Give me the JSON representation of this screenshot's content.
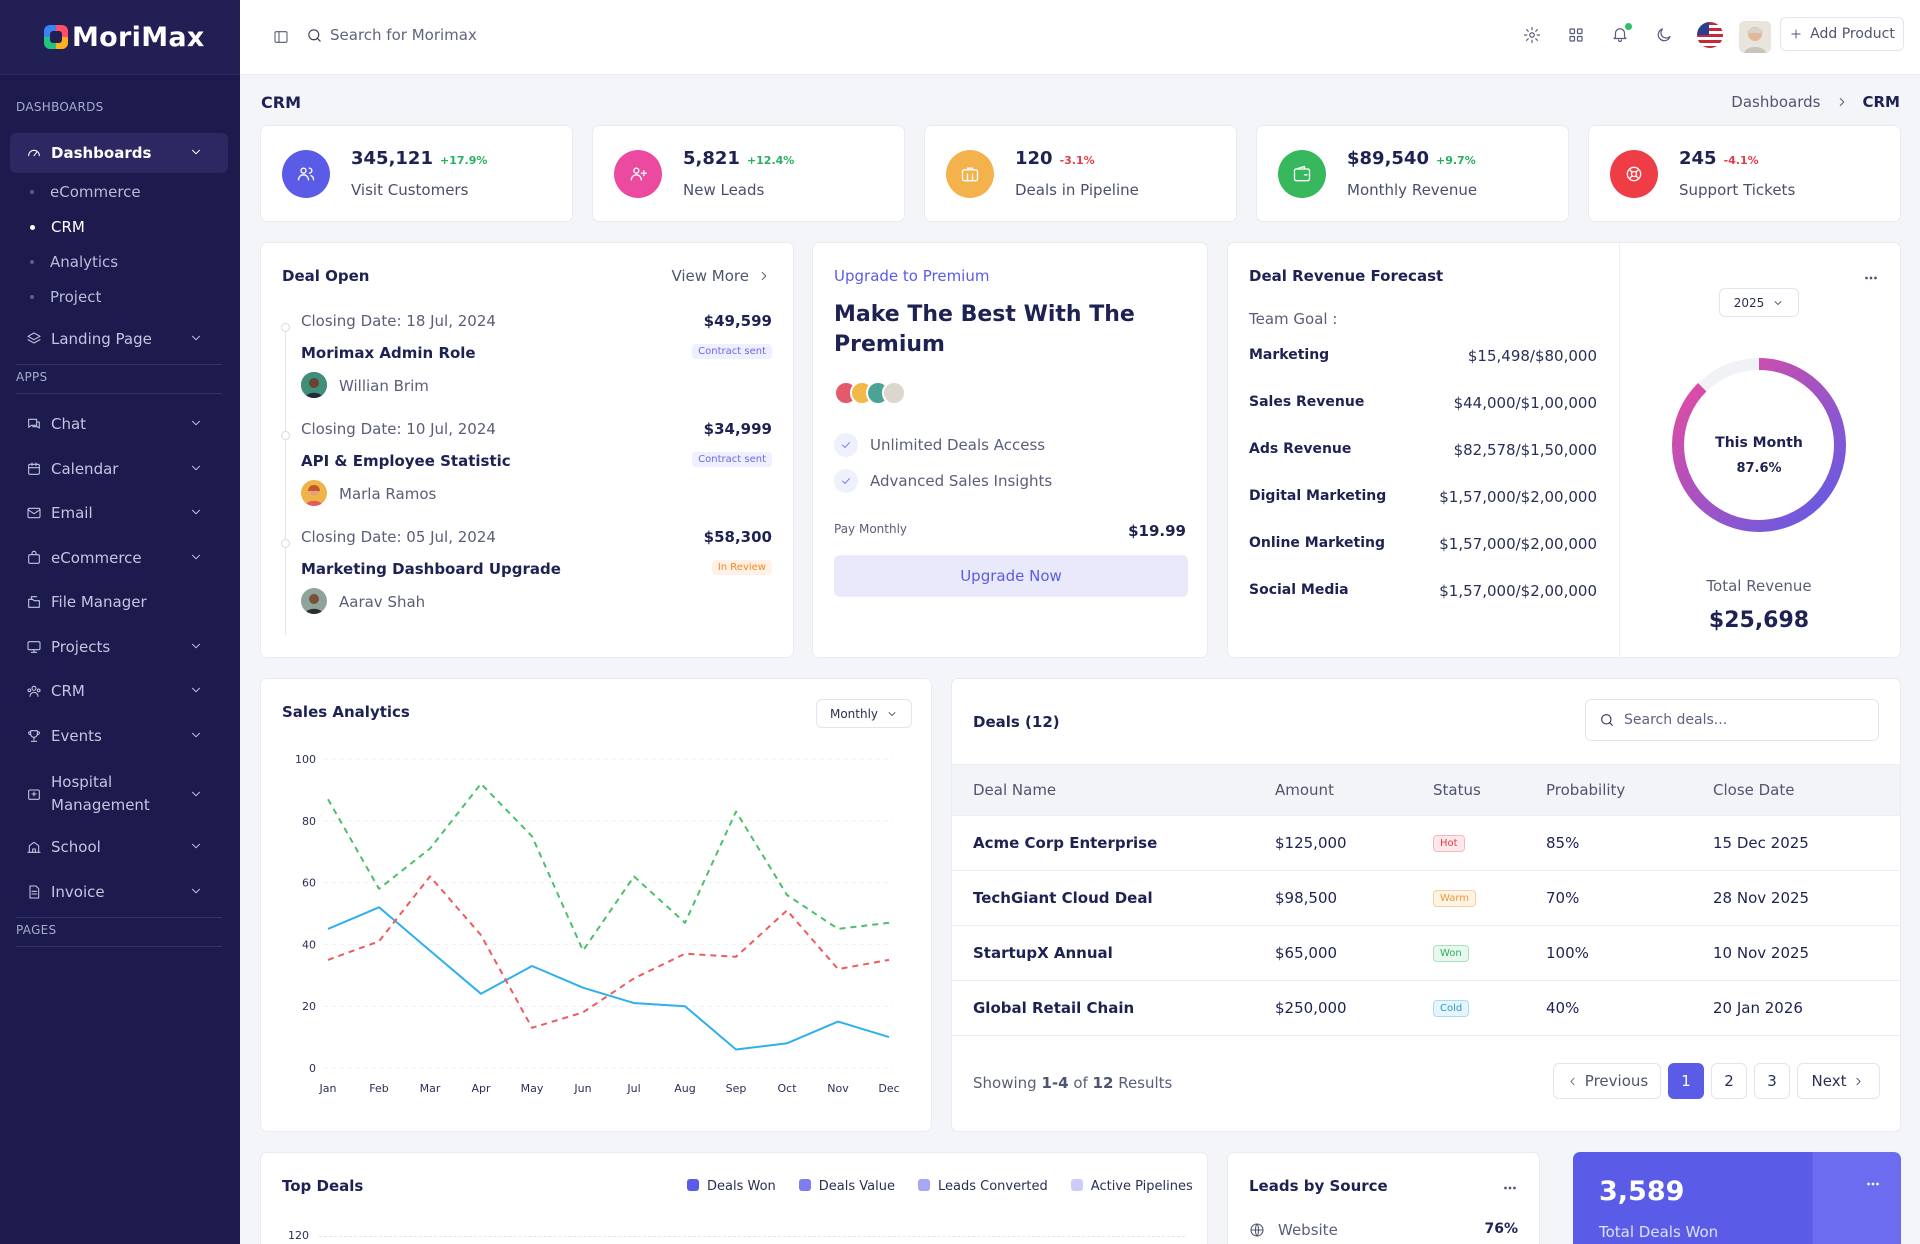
{
  "app": {
    "name": "MoriMax"
  },
  "sidebar": {
    "section_dashboards": "DASHBOARDS",
    "section_apps": "APPS",
    "section_pages": "PAGES",
    "dashboards": "Dashboards",
    "sub_items": [
      "eCommerce",
      "CRM",
      "Analytics",
      "Project"
    ],
    "landing": "Landing Page",
    "apps": [
      "Chat",
      "Calendar",
      "Email",
      "eCommerce",
      "File Manager",
      "Projects",
      "CRM",
      "Events",
      "Hospital",
      "Management",
      "School",
      "Invoice"
    ]
  },
  "topbar": {
    "search_placeholder": "Search for Morimax",
    "add_product": "Add Product"
  },
  "page": {
    "title": "CRM",
    "breadcrumb": [
      "Dashboards",
      "CRM"
    ]
  },
  "stats": [
    {
      "value": "345,121",
      "change": "+17.9%",
      "label": "Visit Customers",
      "color": "#5a5ce8",
      "up": true
    },
    {
      "value": "5,821",
      "change": "+12.4%",
      "label": "New Leads",
      "color": "#ec4aa0",
      "up": true
    },
    {
      "value": "120",
      "change": "-3.1%",
      "label": "Deals in Pipeline",
      "color": "#f4b24c",
      "up": false
    },
    {
      "value": "$89,540",
      "change": "+9.7%",
      "label": "Monthly Revenue",
      "color": "#37b85c",
      "up": true
    },
    {
      "value": "245",
      "change": "-4.1%",
      "label": "Support Tickets",
      "color": "#ef3d45",
      "up": false
    }
  ],
  "deal_open": {
    "title": "Deal Open",
    "view_more": "View More",
    "deals": [
      {
        "closing": "Closing Date: 18 Jul, 2024",
        "amount": "$49,599",
        "name": "Morimax Admin Role",
        "status": "Contract sent",
        "person": "Willian Brim"
      },
      {
        "closing": "Closing Date: 10 Jul, 2024",
        "amount": "$34,999",
        "name": "API & Employee Statistic",
        "status": "Contract sent",
        "person": "Marla Ramos"
      },
      {
        "closing": "Closing Date: 05 Jul, 2024",
        "amount": "$58,300",
        "name": "Marketing Dashboard Upgrade",
        "status": "In Review",
        "person": "Aarav Shah"
      }
    ]
  },
  "premium": {
    "kicker": "Upgrade to Premium",
    "headline_1": "Make The Best With The",
    "headline_2": "Premium",
    "features": [
      "Unlimited Deals Access",
      "Advanced Sales Insights"
    ],
    "pay_label": "Pay Monthly",
    "price": "$19.99",
    "button": "Upgrade Now"
  },
  "forecast": {
    "title": "Deal Revenue Forecast",
    "team_goal": "Team Goal :",
    "year": "2025",
    "rows": [
      {
        "label": "Marketing",
        "value": "$15,498/$80,000"
      },
      {
        "label": "Sales Revenue",
        "value": "$44,000/$1,00,000"
      },
      {
        "label": "Ads Revenue",
        "value": "$82,578/$1,50,000"
      },
      {
        "label": "Digital Marketing",
        "value": "$1,57,000/$2,00,000"
      },
      {
        "label": "Online Marketing",
        "value": "$1,57,000/$2,00,000"
      },
      {
        "label": "Social Media",
        "value": "$1,57,000/$2,00,000"
      }
    ],
    "donut_label": "This Month",
    "donut_value": "87.6%",
    "donut_percent": 87.6,
    "total_label": "Total Revenue",
    "total_value": "$25,698"
  },
  "sales_analytics": {
    "title": "Sales Analytics",
    "period": "Monthly"
  },
  "chart_data": {
    "type": "line",
    "title": "Sales Analytics",
    "categories": [
      "Jan",
      "Feb",
      "Mar",
      "Apr",
      "May",
      "Jun",
      "Jul",
      "Aug",
      "Sep",
      "Oct",
      "Nov",
      "Dec"
    ],
    "ylim": [
      0,
      100
    ],
    "yticks": [
      0,
      20,
      40,
      60,
      80,
      100
    ],
    "grid": true,
    "series": [
      {
        "values": [
          45,
          52,
          38,
          24,
          33,
          26,
          21,
          20,
          6,
          8,
          15,
          10
        ],
        "color": "#2eb0ec",
        "style": "solid"
      },
      {
        "values": [
          35,
          41,
          62,
          43,
          13,
          18,
          29,
          37,
          36,
          51,
          32,
          35
        ],
        "color": "#ee5b5b",
        "style": "dashed"
      },
      {
        "values": [
          87,
          58,
          71,
          92,
          75,
          38,
          62,
          47,
          83,
          56,
          45,
          47
        ],
        "color": "#4cc068",
        "style": "dashed"
      }
    ]
  },
  "deals_table": {
    "title": "Deals (12)",
    "search_placeholder": "Search deals...",
    "headers": [
      "Deal Name",
      "Amount",
      "Status",
      "Probability",
      "Close Date"
    ],
    "rows": [
      {
        "name": "Acme Corp Enterprise",
        "amount": "$125,000",
        "status": "Hot",
        "probability": "85%",
        "close": "15 Dec 2025"
      },
      {
        "name": "TechGiant Cloud Deal",
        "amount": "$98,500",
        "status": "Warm",
        "probability": "70%",
        "close": "28 Nov 2025"
      },
      {
        "name": "StartupX Annual",
        "amount": "$65,000",
        "status": "Won",
        "probability": "100%",
        "close": "10 Nov 2025"
      },
      {
        "name": "Global Retail Chain",
        "amount": "$250,000",
        "status": "Cold",
        "probability": "40%",
        "close": "20 Jan 2026"
      }
    ],
    "showing_prefix": "Showing ",
    "showing_range": "1-4",
    "showing_of": " of ",
    "showing_total": "12",
    "showing_suffix": " Results",
    "prev": "Previous",
    "pages": [
      "1",
      "2",
      "3"
    ],
    "next": "Next"
  },
  "top_deals": {
    "title": "Top Deals",
    "legend": [
      "Deals Won",
      "Deals Value",
      "Leads Converted",
      "Active Pipelines"
    ],
    "legend_colors": [
      "#5a5ce8",
      "#7f7cf0",
      "#a9a6f5",
      "#cdcbf9"
    ],
    "ytick": "120"
  },
  "leads_source": {
    "title": "Leads by Source",
    "first_label": "Website",
    "first_value": "76%"
  },
  "deals_won": {
    "value": "3,589",
    "label": "Total Deals Won"
  }
}
